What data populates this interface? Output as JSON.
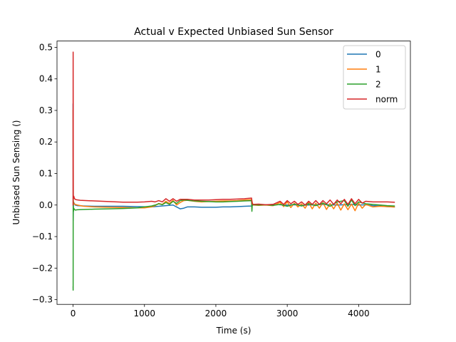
{
  "chart_data": {
    "type": "line",
    "title": "Actual v Expected Unbiased Sun Sensor",
    "xlabel": "Time (s)",
    "ylabel": "Unbiased Sun Sensing ()",
    "xlim": [
      -225,
      4725
    ],
    "ylim": [
      -0.315,
      0.52
    ],
    "xticks": [
      0,
      1000,
      2000,
      3000,
      4000
    ],
    "yticks": [
      -0.3,
      -0.2,
      -0.1,
      0.0,
      0.1,
      0.2,
      0.3,
      0.4,
      0.5
    ],
    "xtick_labels": [
      "0",
      "1000",
      "2000",
      "3000",
      "4000"
    ],
    "ytick_labels": [
      "−0.3",
      "−0.2",
      "−0.1",
      "0.0",
      "0.1",
      "0.2",
      "0.3",
      "0.4",
      "0.5"
    ],
    "grid": false,
    "legend_position": "top-right",
    "series": [
      {
        "name": "0",
        "color": "#1f77b4",
        "x": [
          0,
          2,
          5,
          10,
          30,
          60,
          150,
          300,
          500,
          700,
          900,
          1100,
          1200,
          1300,
          1400,
          1450,
          1500,
          1550,
          1600,
          1700,
          1800,
          1900,
          2000,
          2100,
          2200,
          2300,
          2400,
          2500,
          2520,
          2600,
          2700,
          2800,
          2900,
          3000,
          3100,
          3200,
          3300,
          3400,
          3500,
          3600,
          3700,
          3800,
          3900,
          4000,
          4100,
          4200,
          4300,
          4400,
          4500
        ],
        "y": [
          0.32,
          -0.05,
          0.01,
          0.008,
          0.0,
          -0.002,
          -0.003,
          -0.004,
          -0.004,
          -0.004,
          -0.005,
          -0.006,
          -0.004,
          -0.002,
          0.0,
          -0.006,
          -0.012,
          -0.01,
          -0.006,
          -0.006,
          -0.007,
          -0.007,
          -0.007,
          -0.006,
          -0.006,
          -0.005,
          -0.004,
          -0.003,
          0.0,
          0.001,
          0.0,
          0.002,
          0.001,
          0.0,
          0.001,
          -0.001,
          0.0,
          0.001,
          0.002,
          0.001,
          0.0,
          0.001,
          0.002,
          0.0,
          0.001,
          -0.002,
          -0.003,
          -0.005,
          -0.006
        ]
      },
      {
        "name": "1",
        "color": "#ff7f0e",
        "x": [
          0,
          2,
          5,
          10,
          30,
          60,
          150,
          300,
          500,
          700,
          900,
          1000,
          1100,
          1150,
          1200,
          1250,
          1300,
          1350,
          1400,
          1450,
          1500,
          1550,
          1600,
          1700,
          1800,
          1900,
          2000,
          2100,
          2200,
          2300,
          2400,
          2500,
          2520,
          2600,
          2700,
          2800,
          2900,
          2950,
          3000,
          3050,
          3100,
          3150,
          3200,
          3250,
          3300,
          3350,
          3400,
          3450,
          3500,
          3550,
          3600,
          3650,
          3700,
          3750,
          3800,
          3850,
          3900,
          3950,
          4000,
          4050,
          4100,
          4200,
          4300,
          4400,
          4500
        ],
        "y": [
          0.3,
          0.02,
          0.01,
          0.005,
          0.002,
          0.0,
          -0.004,
          -0.006,
          -0.007,
          -0.008,
          -0.009,
          -0.009,
          -0.006,
          -0.002,
          0.005,
          0.002,
          0.012,
          0.005,
          0.015,
          0.0,
          0.008,
          0.014,
          0.015,
          0.012,
          0.01,
          0.011,
          0.012,
          0.013,
          0.013,
          0.014,
          0.016,
          0.017,
          0.0,
          -0.001,
          0.0,
          -0.002,
          0.008,
          -0.005,
          0.01,
          -0.008,
          0.006,
          -0.006,
          0.004,
          -0.01,
          0.008,
          -0.012,
          0.006,
          -0.01,
          0.008,
          -0.014,
          0.005,
          -0.012,
          0.006,
          -0.016,
          0.004,
          -0.015,
          0.003,
          -0.018,
          0.006,
          -0.01,
          0.002,
          -0.006,
          -0.004,
          -0.005,
          -0.006
        ]
      },
      {
        "name": "2",
        "color": "#2ca02c",
        "x": [
          0,
          1,
          2,
          3,
          5,
          10,
          20,
          30,
          60,
          150,
          300,
          500,
          700,
          900,
          1000,
          1100,
          1150,
          1200,
          1250,
          1300,
          1350,
          1400,
          1450,
          1500,
          1550,
          1600,
          1700,
          1800,
          1900,
          2000,
          2100,
          2200,
          2300,
          2400,
          2500,
          2505,
          2510,
          2520,
          2600,
          2700,
          2800,
          2900,
          3000,
          3100,
          3200,
          3300,
          3400,
          3500,
          3600,
          3700,
          3800,
          3850,
          3900,
          3950,
          4000,
          4100,
          4200,
          4300,
          4400,
          4500
        ],
        "y": [
          -0.26,
          -0.27,
          0.15,
          0.0,
          -0.02,
          -0.01,
          -0.014,
          -0.016,
          -0.015,
          -0.014,
          -0.013,
          -0.012,
          -0.011,
          -0.009,
          -0.006,
          -0.003,
          0.0,
          0.004,
          0.001,
          0.008,
          0.002,
          0.012,
          0.005,
          0.014,
          0.016,
          0.015,
          0.013,
          0.012,
          0.011,
          0.01,
          0.01,
          0.011,
          0.012,
          0.013,
          0.014,
          -0.02,
          0.0,
          0.001,
          0.0,
          0.001,
          -0.001,
          0.002,
          -0.004,
          0.003,
          -0.003,
          0.004,
          -0.002,
          0.006,
          -0.004,
          0.01,
          0.014,
          -0.004,
          0.016,
          -0.002,
          0.01,
          0.004,
          0.002,
          0.0,
          -0.002,
          -0.003
        ]
      },
      {
        "name": "norm",
        "color": "#d62728",
        "x": [
          0,
          1,
          2,
          3,
          5,
          10,
          20,
          40,
          100,
          300,
          500,
          700,
          900,
          1000,
          1100,
          1150,
          1200,
          1250,
          1300,
          1350,
          1400,
          1450,
          1500,
          1600,
          1700,
          1800,
          1900,
          2000,
          2100,
          2200,
          2300,
          2400,
          2500,
          2510,
          2520,
          2600,
          2700,
          2800,
          2900,
          2950,
          3000,
          3050,
          3100,
          3150,
          3200,
          3250,
          3300,
          3350,
          3400,
          3450,
          3500,
          3550,
          3600,
          3650,
          3700,
          3750,
          3800,
          3850,
          3900,
          3950,
          4000,
          4050,
          4100,
          4200,
          4300,
          4400,
          4500
        ],
        "y": [
          0.0,
          0.485,
          0.3,
          0.02,
          0.025,
          0.028,
          0.02,
          0.017,
          0.015,
          0.013,
          0.011,
          0.009,
          0.009,
          0.01,
          0.012,
          0.01,
          0.014,
          0.01,
          0.02,
          0.012,
          0.02,
          0.012,
          0.018,
          0.018,
          0.016,
          0.016,
          0.016,
          0.017,
          0.018,
          0.018,
          0.019,
          0.02,
          0.022,
          0.004,
          0.002,
          0.003,
          0.001,
          0.002,
          0.012,
          0.002,
          0.014,
          0.004,
          0.012,
          0.002,
          0.01,
          0.0,
          0.012,
          0.002,
          0.014,
          0.002,
          0.014,
          0.004,
          0.016,
          0.002,
          0.016,
          0.004,
          0.018,
          0.002,
          0.02,
          0.004,
          0.018,
          0.006,
          0.012,
          0.01,
          0.01,
          0.01,
          0.009
        ]
      }
    ]
  }
}
